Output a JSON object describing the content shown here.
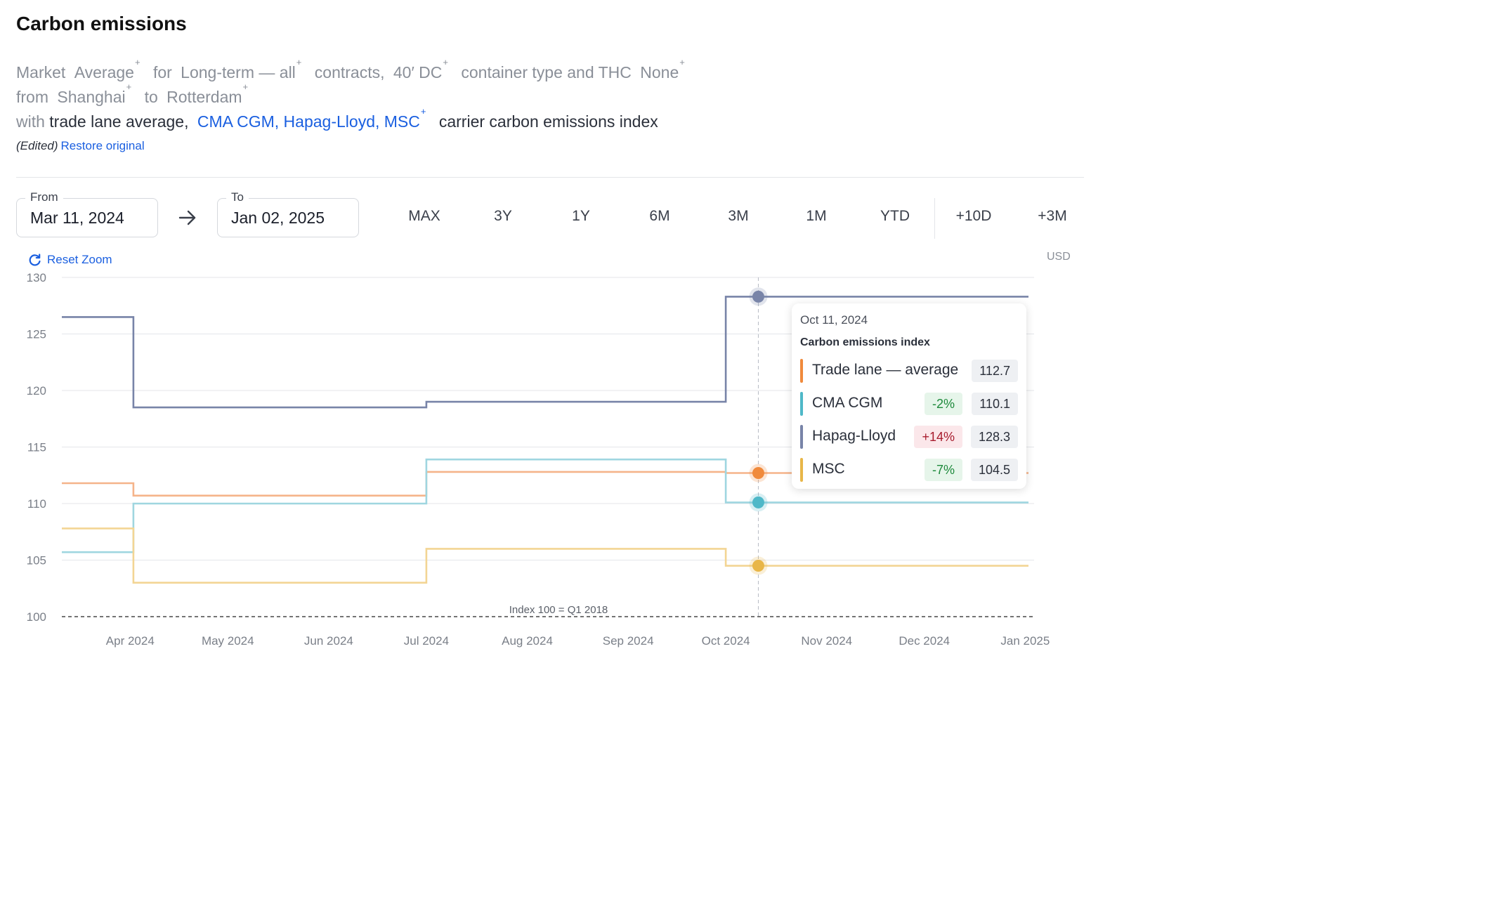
{
  "header": {
    "title": "Carbon emissions",
    "desc": {
      "w_market": "Market",
      "w_average": "Average",
      "w_for": "for",
      "w_longterm": "Long-term — all",
      "w_contracts": "contracts,",
      "w_container": "40′ DC",
      "w_containertype": "container type and THC",
      "w_thc": "None",
      "w_from": "from",
      "w_origin": "Shanghai",
      "w_to": "to",
      "w_destination": "Rotterdam",
      "w_with": "with",
      "w_tradelane": "trade lane average,",
      "w_carriers": "CMA CGM, Hapag-Lloyd, MSC",
      "w_index": "carrier carbon emissions index",
      "plus": "+"
    },
    "edited_label": "(Edited)",
    "restore_label": "Restore original"
  },
  "date_range": {
    "from_label": "From",
    "from_value": "Mar 11, 2024",
    "to_label": "To",
    "to_value": "Jan 02, 2025",
    "buttons": [
      "MAX",
      "3Y",
      "1Y",
      "6M",
      "3M",
      "1M",
      "YTD",
      "+10D",
      "+3M"
    ]
  },
  "reset_zoom_label": "Reset Zoom",
  "currency": "USD",
  "chart_data": {
    "type": "line",
    "step": true,
    "x_range": [
      "2024-03-11",
      "2025-01-02"
    ],
    "ylim": [
      100,
      130
    ],
    "y_ticks": [
      130,
      125,
      120,
      115,
      110,
      105,
      100
    ],
    "x_ticks": [
      "Apr 2024",
      "May 2024",
      "Jun 2024",
      "Jul 2024",
      "Aug 2024",
      "Sep 2024",
      "Oct 2024",
      "Nov 2024",
      "Dec 2024",
      "Jan 2025"
    ],
    "x_tick_dates": [
      "2024-04-01",
      "2024-05-01",
      "2024-06-01",
      "2024-07-01",
      "2024-08-01",
      "2024-09-01",
      "2024-10-01",
      "2024-11-01",
      "2024-12-01",
      "2025-01-01"
    ],
    "baseline": {
      "value": 100,
      "label": "Index 100 = Q1 2018"
    },
    "grid": true,
    "series": [
      {
        "name": "Hapag-Lloyd",
        "color": "#7884a8",
        "x": [
          "2024-03-11",
          "2024-04-02",
          "2024-07-01",
          "2024-10-01",
          "2025-01-02"
        ],
        "values": [
          126.5,
          118.5,
          119.0,
          128.3,
          128.3
        ]
      },
      {
        "name": "Trade lane — average",
        "color": "#f5b48a",
        "x": [
          "2024-03-11",
          "2024-04-02",
          "2024-07-01",
          "2024-10-01",
          "2025-01-02"
        ],
        "values": [
          111.8,
          110.7,
          112.8,
          112.7,
          112.7
        ]
      },
      {
        "name": "CMA CGM",
        "color": "#9fd6e0",
        "x": [
          "2024-03-11",
          "2024-04-02",
          "2024-07-01",
          "2024-10-01",
          "2025-01-02"
        ],
        "values": [
          105.7,
          110.0,
          113.9,
          110.1,
          110.1
        ]
      },
      {
        "name": "MSC",
        "color": "#f3d594",
        "x": [
          "2024-03-11",
          "2024-04-02",
          "2024-07-01",
          "2024-10-01",
          "2025-01-02"
        ],
        "values": [
          107.8,
          103.0,
          106.0,
          104.5,
          104.5
        ]
      }
    ],
    "hover": {
      "date": "2024-10-11",
      "label": "Oct 11, 2024",
      "heading": "Carbon emissions index",
      "rows": [
        {
          "name": "Trade lane — average",
          "color": "#f08a3c",
          "change": "",
          "value": "112.7",
          "y": 112.7
        },
        {
          "name": "CMA CGM",
          "color": "#4fb8c8",
          "change": "-2%",
          "change_sign": "neg",
          "value": "110.1",
          "y": 110.1
        },
        {
          "name": "Hapag-Lloyd",
          "color": "#7884a8",
          "change": "+14%",
          "change_sign": "pos",
          "value": "128.3",
          "y": 128.3
        },
        {
          "name": "MSC",
          "color": "#e8b648",
          "change": "-7%",
          "change_sign": "neg",
          "value": "104.5",
          "y": 104.5
        }
      ]
    }
  }
}
